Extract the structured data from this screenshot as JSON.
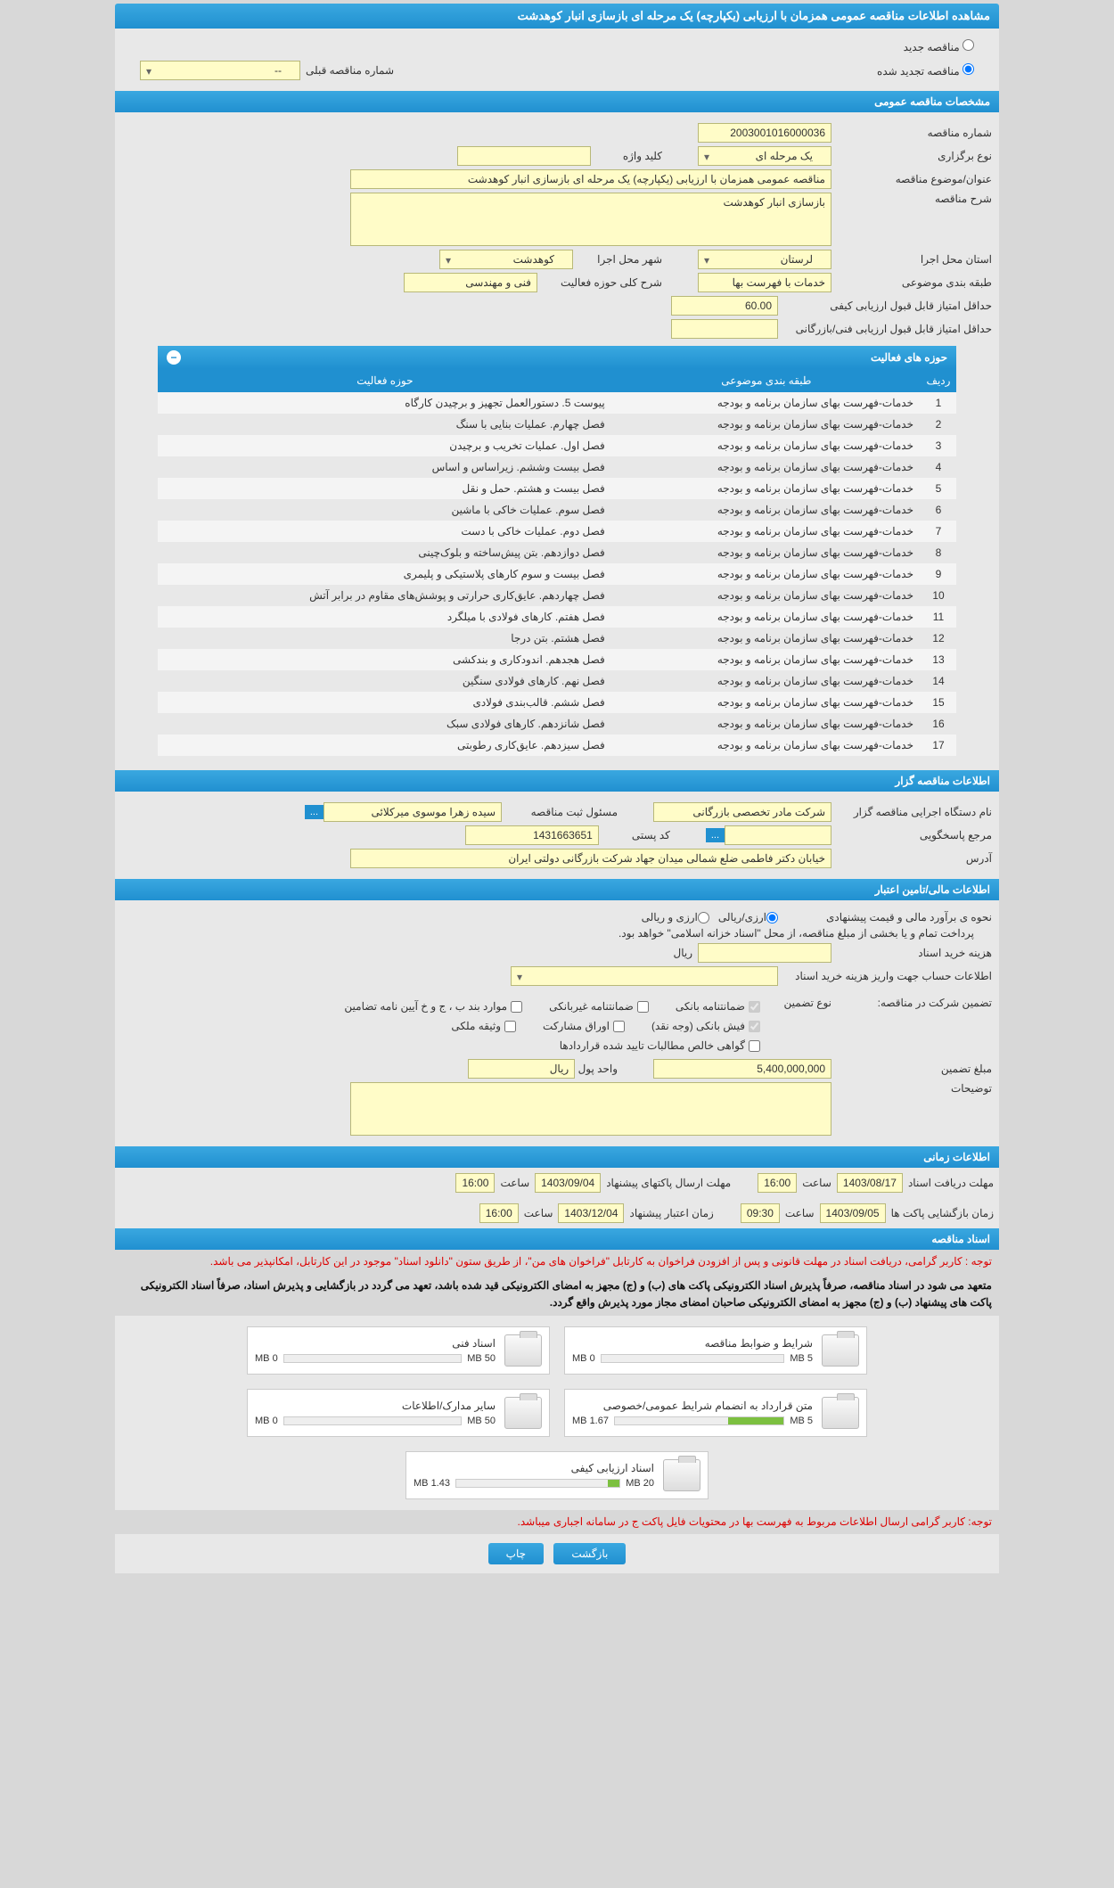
{
  "page_title": "مشاهده اطلاعات مناقصه عمومی همزمان با ارزیابی (یکپارچه) یک مرحله ای بازسازی انبار کوهدشت",
  "radios": {
    "new": "مناقصه جدید",
    "renewed": "مناقصه تجدید شده",
    "prev_label": "شماره مناقصه قبلی",
    "prev_value": "--"
  },
  "spec": {
    "section": "مشخصات مناقصه عمومی",
    "number_label": "شماره مناقصه",
    "number": "2003001016000036",
    "type_label": "نوع برگزاری",
    "type": "یک مرحله ای",
    "keyword_label": "کلید واژه",
    "keyword": "",
    "subject_label": "عنوان/موضوع مناقصه",
    "subject": "مناقصه عمومی همزمان با ارزیابی (یکپارچه) یک مرحله ای بازسازی انبار کوهدشت",
    "desc_label": "شرح مناقصه",
    "desc": "بازسازی انبار کوهدشت",
    "province_label": "استان محل اجرا",
    "province": "لرستان",
    "city_label": "شهر محل اجرا",
    "city": "کوهدشت",
    "category_label": "طبقه بندی موضوعی",
    "category": "خدمات با فهرست بها",
    "scope_label": "شرح کلی حوزه فعالیت",
    "scope": "فنی و مهندسی",
    "min_qual_label": "حداقل امتیاز قابل قبول ارزیابی کیفی",
    "min_qual": "60.00",
    "min_tech_label": "حداقل امتیاز قابل قبول ارزیابی فنی/بازرگانی",
    "min_tech": ""
  },
  "activity": {
    "section": "حوزه های فعالیت",
    "cols": [
      "ردیف",
      "طبقه بندی موضوعی",
      "حوزه فعالیت"
    ],
    "category_text": "خدمات-فهرست بهای سازمان برنامه و بودجه",
    "rows": [
      "پیوست 5. دستورالعمل تجهیز و برچیدن کارگاه",
      "فصل چهارم. عملیات بنایی با سنگ",
      "فصل اول. عملیات تخریب و برچیدن",
      "فصل بیست وششم. زیراساس و اساس",
      "فصل بیست و هشتم. حمل و نقل",
      "فصل سوم. عملیات خاکی با ماشین",
      "فصل دوم. عملیات خاکی با دست",
      "فصل دوازدهم. بتن پیش‌ساخته و بلوک‌چینی",
      "فصل بیست و سوم کارهای پلاستیکی و پلیمری",
      "فصل چهاردهم. عایق‌کاری حرارتی و پوشش‌های مقاوم در برابر آتش",
      "فصل هفتم. کارهای فولادی با میلگرد",
      "فصل هشتم. بتن درجا",
      "فصل هجدهم. اندودکاری و بندکشی",
      "فصل نهم. کارهای فولادی سنگین",
      "فصل ششم. قالب‌بندی فولادی",
      "فصل شانزدهم. کارهای فولادی سبک",
      "فصل سیزدهم. عایق‌کاری رطوبتی"
    ]
  },
  "org": {
    "section": "اطلاعات مناقصه گزار",
    "exec_label": "نام دستگاه اجرایی مناقصه گزار",
    "exec": "شرکت مادر تخصصی بازرگانی",
    "resp_label": "مسئول ثبت مناقصه",
    "resp": "سیده زهرا موسوی میرکلائی",
    "contact_label": "مرجع پاسخگویی",
    "contact": "",
    "postal_label": "کد پستی",
    "postal": "1431663651",
    "address_label": "آدرس",
    "address": "خیابان دکتر فاطمی ضلع شمالی میدان جهاد شرکت بازرگانی دولتی ایران"
  },
  "fin": {
    "section": "اطلاعات مالی/تامین اعتبار",
    "estimate_label": "نحوه ی برآورد مالی و قیمت پیشنهادی",
    "r1": "ارزی/ریالی",
    "r2": "ارزی و ریالی",
    "note": "پرداخت تمام و یا بخشی از مبلغ مناقصه، از محل \"اسناد خزانه اسلامی\" خواهد بود.",
    "buy_label": "هزینه خرید اسناد",
    "buy_unit": "ریال",
    "account_label": "اطلاعات حساب جهت واریز هزینه خرید اسناد",
    "guarantee_label": "تضمین شرکت در مناقصه:",
    "guarantee_type_label": "نوع تضمین",
    "g1": "ضمانتنامه بانکی",
    "g2": "ضمانتنامه غیربانکی",
    "g3": "موارد بند ب ، ج و خ آیین نامه تضامین",
    "g4": "فیش بانکی (وجه نقد)",
    "g5": "اوراق مشارکت",
    "g6": "وثیقه ملکی",
    "g7": "گواهی خالص مطالبات تایید شده قراردادها",
    "amount_label": "مبلغ تضمین",
    "amount": "5,400,000,000",
    "amount_unit": "واحد پول",
    "amount_currency": "ریال",
    "notes_label": "توضیحات"
  },
  "time": {
    "section": "اطلاعات زمانی",
    "receive_label": "مهلت دریافت اسناد",
    "receive_date": "1403/08/17",
    "receive_time": "16:00",
    "submit_label": "مهلت ارسال پاکتهای پیشنهاد",
    "submit_date": "1403/09/04",
    "submit_time": "16:00",
    "open_label": "زمان بازگشایی پاکت ها",
    "open_date": "1403/09/05",
    "open_time": "09:30",
    "valid_label": "زمان اعتبار پیشنهاد",
    "valid_date": "1403/12/04",
    "valid_time": "16:00",
    "hour": "ساعت"
  },
  "docs": {
    "section": "اسناد مناقصه",
    "warn1": "توجه : کاربر گرامی، دریافت اسناد در مهلت قانونی و پس از افزودن فراخوان به کارتابل \"فراخوان های من\"، از طریق ستون \"دانلود اسناد\" موجود در این کارتابل، امکانپذیر می باشد.",
    "warn2": "متعهد می شود در اسناد مناقصه، صرفاً پذیرش اسناد الکترونیکی پاکت های (ب) و (ج) مجهز به امضای الکترونیکی قید شده باشد، تعهد می گردد در بازگشایی و پذیرش اسناد، صرفاً اسناد الکترونیکی پاکت های پیشنهاد (ب) و (ج) مجهز به امضای الکترونیکی صاحبان امضای مجاز مورد پذیرش واقع گردد.",
    "warn3": "توجه: کاربر گرامی ارسال اطلاعات مربوط به فهرست بها در محتویات فایل پاکت ج در سامانه اجباری میباشد.",
    "items": [
      {
        "title": "شرایط و ضوابط مناقصه",
        "used": "0 MB",
        "cap": "5 MB",
        "pct": 0
      },
      {
        "title": "اسناد فنی",
        "used": "0 MB",
        "cap": "50 MB",
        "pct": 0
      },
      {
        "title": "متن قرارداد به انضمام شرایط عمومی/خصوصی",
        "used": "1.67 MB",
        "cap": "5 MB",
        "pct": 33
      },
      {
        "title": "سایر مدارک/اطلاعات",
        "used": "0 MB",
        "cap": "50 MB",
        "pct": 0
      },
      {
        "title": "اسناد ارزیابی کیفی",
        "used": "1.43 MB",
        "cap": "20 MB",
        "pct": 7
      }
    ]
  },
  "footer": {
    "back": "بازگشت",
    "print": "چاپ"
  },
  "more": "..."
}
